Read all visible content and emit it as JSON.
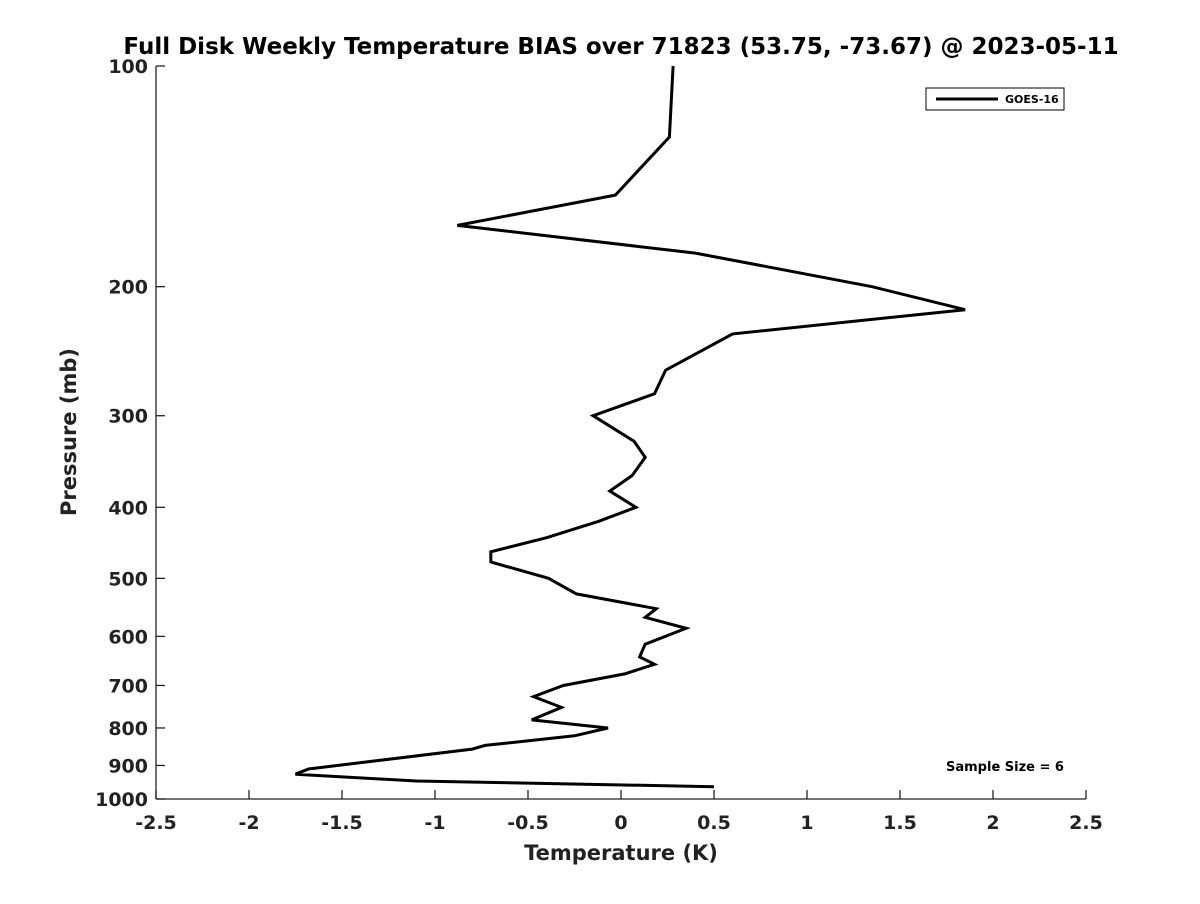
{
  "chart_data": {
    "type": "line",
    "title": "Full Disk Weekly Temperature BIAS over 71823 (53.75, -73.67) @ 2023-05-11",
    "xlabel": "Temperature (K)",
    "ylabel": "Pressure (mb)",
    "xlim": [
      -2.5,
      2.5
    ],
    "ylim": [
      100,
      1000
    ],
    "y_scale": "log",
    "y_reversed": true,
    "x_ticks": [
      "-2.5",
      "-2",
      "-1.5",
      "-1",
      "-0.5",
      "0",
      "0.5",
      "1",
      "1.5",
      "2",
      "2.5"
    ],
    "y_ticks": [
      {
        "value": 100,
        "label": "100"
      },
      {
        "value": 200,
        "label": "200"
      },
      {
        "value": 300,
        "label": "300"
      },
      {
        "value": 400,
        "label": "400"
      },
      {
        "value": 500,
        "label": "500"
      },
      {
        "value": 600,
        "label": "600"
      },
      {
        "value": 700,
        "label": "700"
      },
      {
        "value": 800,
        "label": "800"
      },
      {
        "value": 900,
        "label": "900"
      },
      {
        "value": 1000,
        "label": "1000"
      }
    ],
    "grid": false,
    "legend_position": "top-right",
    "series": [
      {
        "name": "GOES-16",
        "color": "#000000",
        "points": [
          {
            "t": 0.28,
            "p": 100
          },
          {
            "t": 0.26,
            "p": 125
          },
          {
            "t": -0.03,
            "p": 150
          },
          {
            "t": -0.88,
            "p": 165
          },
          {
            "t": 0.4,
            "p": 180
          },
          {
            "t": 1.35,
            "p": 200
          },
          {
            "t": 1.85,
            "p": 215
          },
          {
            "t": 0.6,
            "p": 232
          },
          {
            "t": 0.24,
            "p": 260
          },
          {
            "t": 0.18,
            "p": 280
          },
          {
            "t": -0.15,
            "p": 300
          },
          {
            "t": 0.07,
            "p": 325
          },
          {
            "t": 0.13,
            "p": 342
          },
          {
            "t": 0.06,
            "p": 362
          },
          {
            "t": -0.06,
            "p": 380
          },
          {
            "t": 0.08,
            "p": 400
          },
          {
            "t": -0.12,
            "p": 418
          },
          {
            "t": -0.4,
            "p": 440
          },
          {
            "t": -0.7,
            "p": 460
          },
          {
            "t": -0.7,
            "p": 475
          },
          {
            "t": -0.39,
            "p": 500
          },
          {
            "t": -0.24,
            "p": 525
          },
          {
            "t": 0.19,
            "p": 550
          },
          {
            "t": 0.13,
            "p": 565
          },
          {
            "t": 0.35,
            "p": 585
          },
          {
            "t": 0.13,
            "p": 615
          },
          {
            "t": 0.1,
            "p": 640
          },
          {
            "t": 0.18,
            "p": 655
          },
          {
            "t": 0.02,
            "p": 675
          },
          {
            "t": -0.31,
            "p": 700
          },
          {
            "t": -0.47,
            "p": 725
          },
          {
            "t": -0.32,
            "p": 750
          },
          {
            "t": -0.48,
            "p": 780
          },
          {
            "t": -0.07,
            "p": 800
          },
          {
            "t": -0.25,
            "p": 820
          },
          {
            "t": -0.73,
            "p": 845
          },
          {
            "t": -0.8,
            "p": 855
          },
          {
            "t": -1.68,
            "p": 910
          },
          {
            "t": -1.75,
            "p": 925
          },
          {
            "t": -1.1,
            "p": 945
          },
          {
            "t": 0.5,
            "p": 962
          }
        ]
      }
    ],
    "annotations": [
      {
        "text": "Sample Size = 6"
      }
    ]
  }
}
